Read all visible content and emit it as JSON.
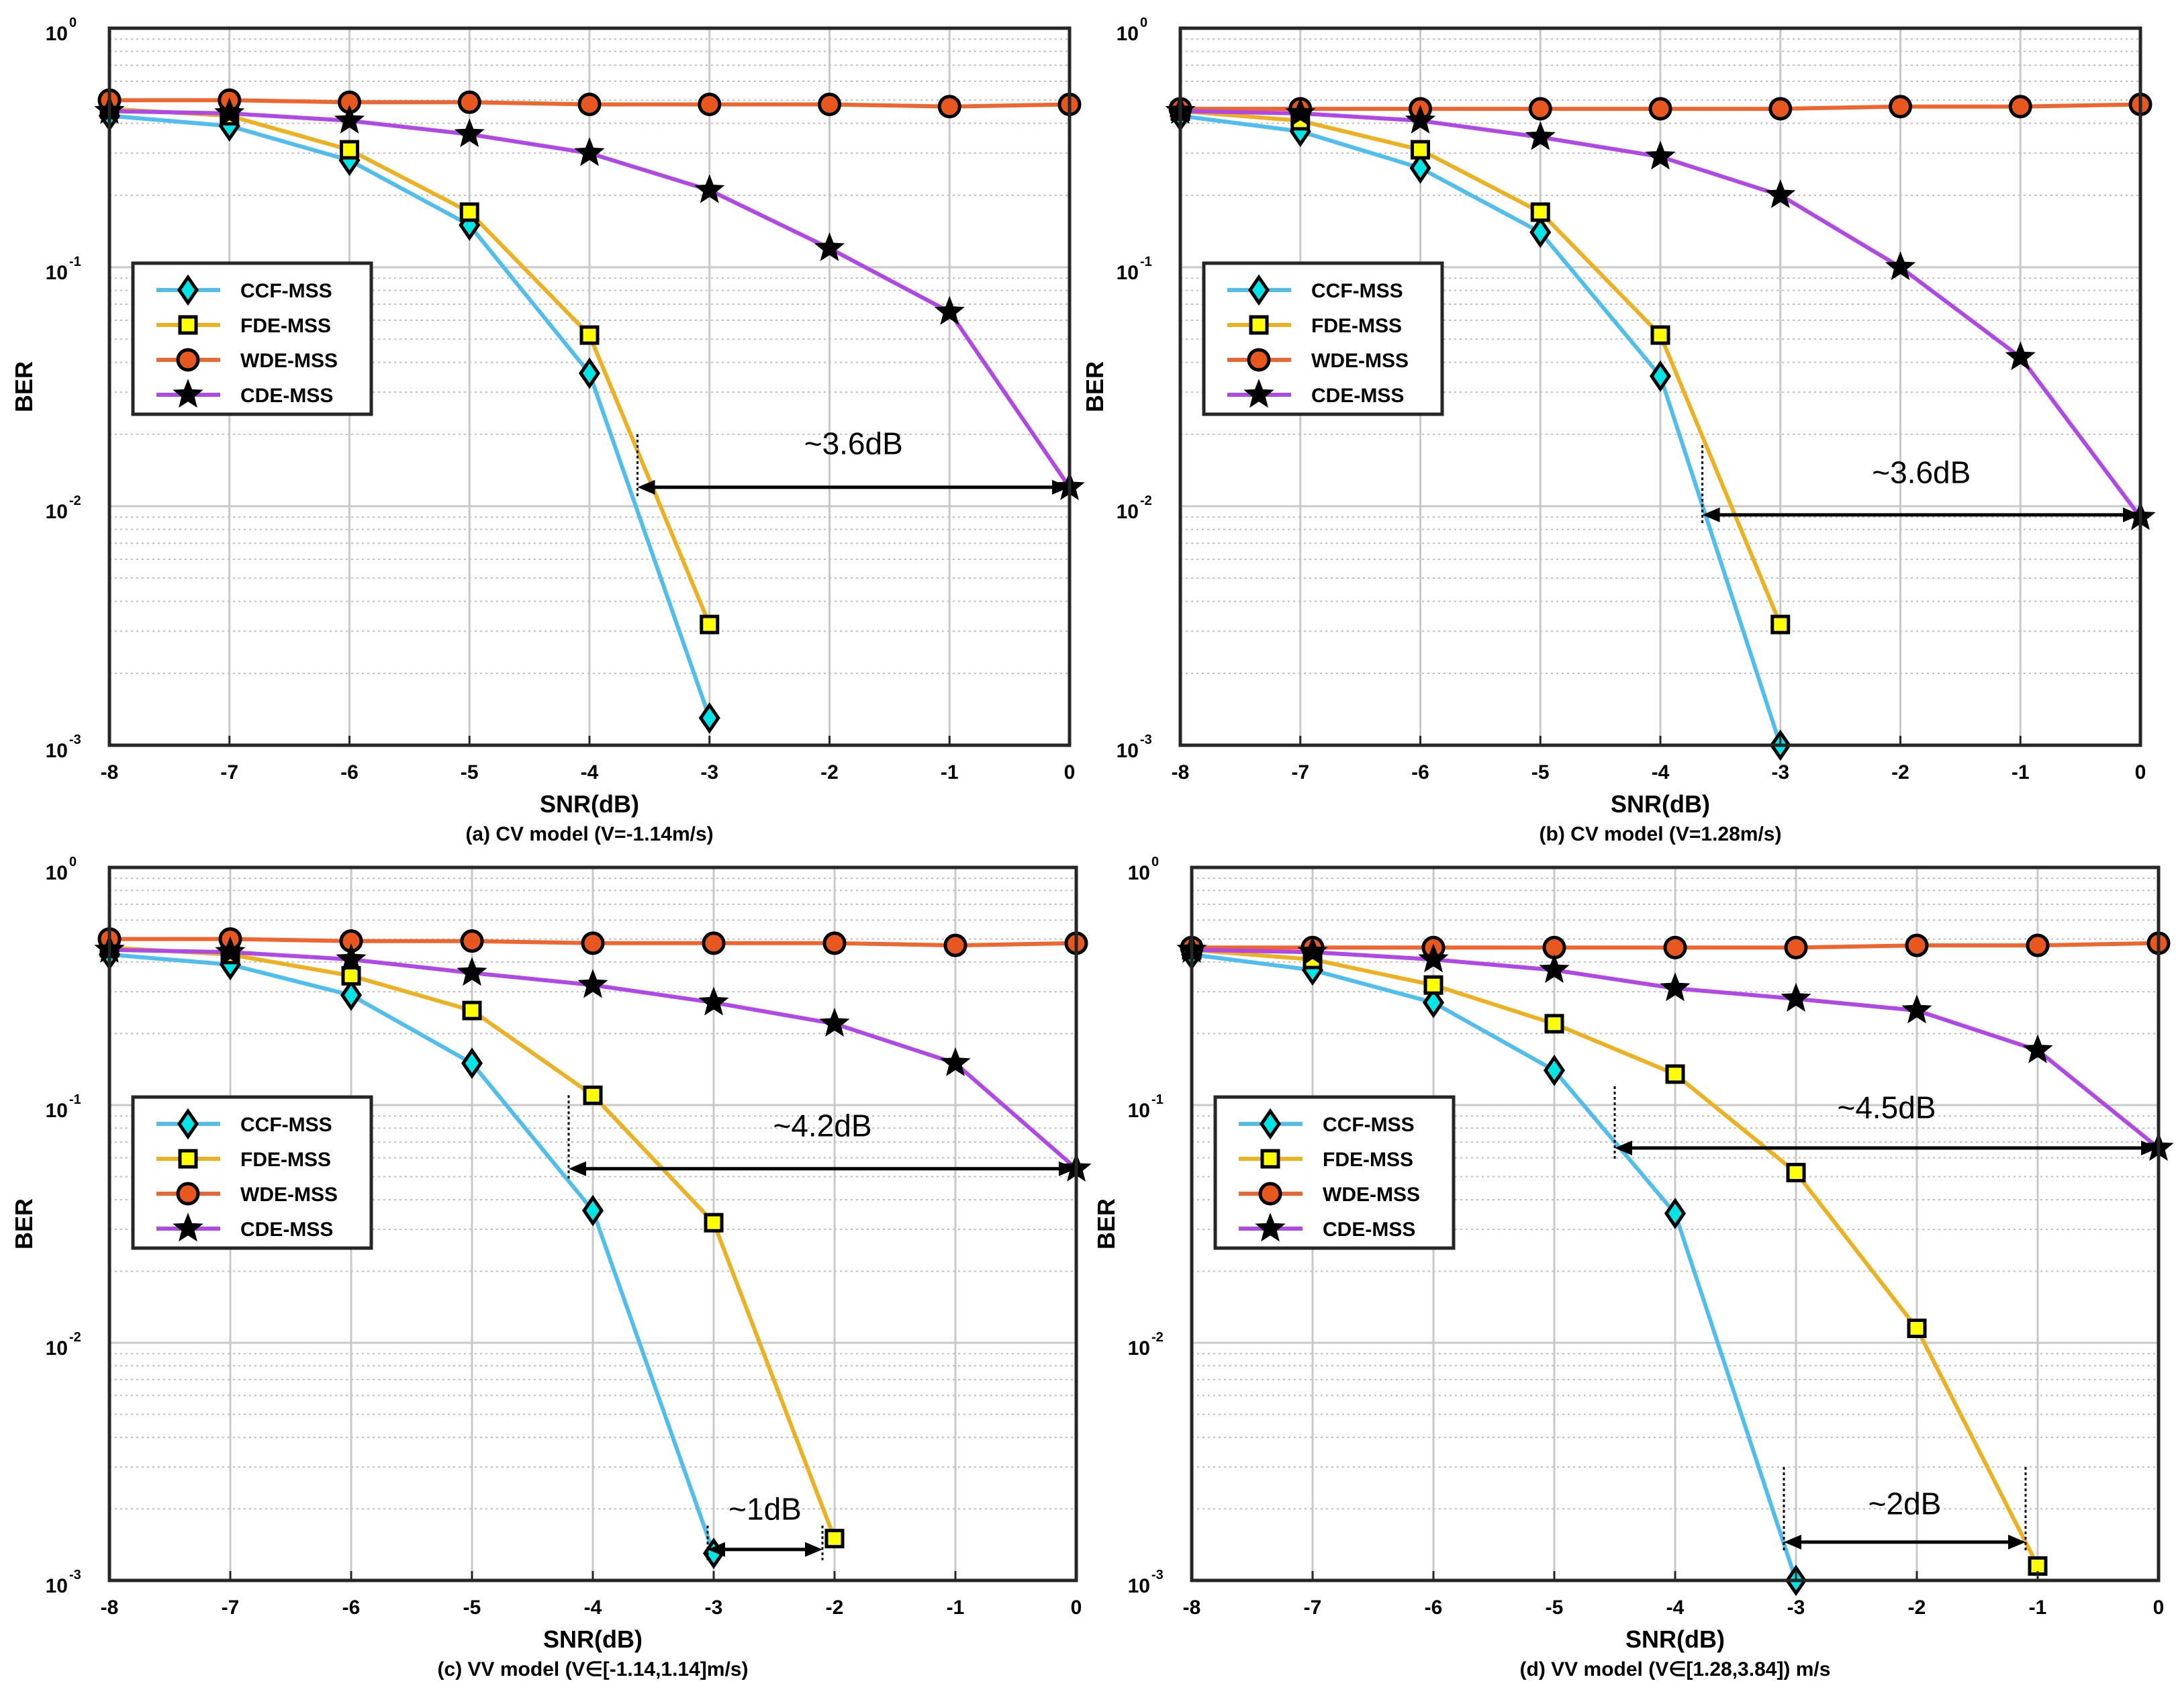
{
  "figure": {
    "colors": {
      "ccf": "#4DBEEE",
      "fde": "#EDB120",
      "wde": "#F0642D",
      "cde": "#B048E8",
      "cyan_marker": "#00E5E5",
      "yellow_marker": "#FFFF00",
      "orange_marker": "#E8581E",
      "black": "#000000",
      "grid": "#c8c8c8"
    }
  },
  "chart_data": [
    {
      "type": "line",
      "yscale": "log",
      "caption": "(a) CV model (V=-1.14m/s)",
      "xlabel": "SNR(dB)",
      "ylabel": "BER",
      "xlim": [
        -8,
        0
      ],
      "ylim": [
        0.001,
        1
      ],
      "grid": true,
      "legend_position": "center-left",
      "x_ticks": [
        "-8",
        "-7",
        "-6",
        "-5",
        "-4",
        "-3",
        "-2",
        "-1",
        "0"
      ],
      "y_tick_base": "10",
      "y_tick_exponents": [
        "-3",
        "-2",
        "-1",
        "0"
      ],
      "series": [
        {
          "name": "CCF-MSS",
          "key": "ccf",
          "marker": "diamond",
          "x": [
            -8,
            -7,
            -6,
            -5,
            -4,
            -3
          ],
          "values": [
            0.43,
            0.39,
            0.28,
            0.15,
            0.036,
            0.0013
          ]
        },
        {
          "name": "FDE-MSS",
          "key": "fde",
          "marker": "square",
          "x": [
            -8,
            -7,
            -6,
            -5,
            -4,
            -3
          ],
          "values": [
            0.46,
            0.43,
            0.31,
            0.17,
            0.052,
            0.0032
          ]
        },
        {
          "name": "WDE-MSS",
          "key": "wde",
          "marker": "circle",
          "x": [
            -8,
            -7,
            -6,
            -5,
            -4,
            -3,
            -2,
            -1,
            0
          ],
          "values": [
            0.5,
            0.5,
            0.49,
            0.49,
            0.48,
            0.48,
            0.48,
            0.47,
            0.48
          ]
        },
        {
          "name": "CDE-MSS",
          "key": "cde",
          "marker": "star",
          "x": [
            -8,
            -7,
            -6,
            -5,
            -4,
            -3,
            -2,
            -1,
            0
          ],
          "values": [
            0.45,
            0.44,
            0.41,
            0.36,
            0.3,
            0.21,
            0.12,
            0.065,
            0.012
          ]
        }
      ],
      "annotations": [
        {
          "text": "~3.6dB",
          "x1": -3.6,
          "x2": 0,
          "y": 0.012,
          "text_y": 0.0165,
          "v1_top": 0.02,
          "v2_top": 0.019
        }
      ]
    },
    {
      "type": "line",
      "yscale": "log",
      "caption": "(b) CV model (V=1.28m/s)",
      "xlabel": "SNR(dB)",
      "ylabel": "BER",
      "xlim": [
        -8,
        0
      ],
      "ylim": [
        0.001,
        1
      ],
      "grid": true,
      "legend_position": "center-left",
      "x_ticks": [
        "-8",
        "-7",
        "-6",
        "-5",
        "-4",
        "-3",
        "-2",
        "-1",
        "0"
      ],
      "y_tick_base": "10",
      "y_tick_exponents": [
        "-3",
        "-2",
        "-1",
        "0"
      ],
      "series": [
        {
          "name": "CCF-MSS",
          "key": "ccf",
          "marker": "diamond",
          "x": [
            -8,
            -7,
            -6,
            -5,
            -4,
            -3
          ],
          "values": [
            0.43,
            0.37,
            0.26,
            0.14,
            0.035,
            0.001
          ]
        },
        {
          "name": "FDE-MSS",
          "key": "fde",
          "marker": "square",
          "x": [
            -8,
            -7,
            -6,
            -5,
            -4,
            -3
          ],
          "values": [
            0.45,
            0.41,
            0.31,
            0.17,
            0.052,
            0.0032
          ]
        },
        {
          "name": "WDE-MSS",
          "key": "wde",
          "marker": "circle",
          "x": [
            -8,
            -7,
            -6,
            -5,
            -4,
            -3,
            -2,
            -1,
            0
          ],
          "values": [
            0.46,
            0.46,
            0.46,
            0.46,
            0.46,
            0.46,
            0.47,
            0.47,
            0.48
          ]
        },
        {
          "name": "CDE-MSS",
          "key": "cde",
          "marker": "star",
          "x": [
            -8,
            -7,
            -6,
            -5,
            -4,
            -3,
            -2,
            -1,
            0
          ],
          "values": [
            0.45,
            0.44,
            0.41,
            0.35,
            0.29,
            0.2,
            0.1,
            0.042,
            0.009
          ]
        }
      ],
      "annotations": [
        {
          "text": "~3.6dB",
          "x1": -3.65,
          "x2": 0,
          "y": 0.0092,
          "text_y": 0.0125,
          "v1_top": 0.018,
          "v2_top": 0.018
        }
      ]
    },
    {
      "type": "line",
      "yscale": "log",
      "caption": "(c) VV model (V∈[-1.14,1.14]m/s)",
      "xlabel": "SNR(dB)",
      "ylabel": "BER",
      "xlim": [
        -8,
        0
      ],
      "ylim": [
        0.001,
        1
      ],
      "grid": true,
      "legend_position": "center-left",
      "x_ticks": [
        "-8",
        "-7",
        "-6",
        "-5",
        "-4",
        "-3",
        "-2",
        "-1",
        "0"
      ],
      "y_tick_base": "10",
      "y_tick_exponents": [
        "-3",
        "-2",
        "-1",
        "0"
      ],
      "series": [
        {
          "name": "CCF-MSS",
          "key": "ccf",
          "marker": "diamond",
          "x": [
            -8,
            -7,
            -6,
            -5,
            -4,
            -3
          ],
          "values": [
            0.43,
            0.39,
            0.29,
            0.15,
            0.036,
            0.0013
          ]
        },
        {
          "name": "FDE-MSS",
          "key": "fde",
          "marker": "square",
          "x": [
            -8,
            -7,
            -6,
            -5,
            -4,
            -3,
            -2
          ],
          "values": [
            0.46,
            0.43,
            0.35,
            0.25,
            0.11,
            0.032,
            0.0015
          ]
        },
        {
          "name": "WDE-MSS",
          "key": "wde",
          "marker": "circle",
          "x": [
            -8,
            -7,
            -6,
            -5,
            -4,
            -3,
            -2,
            -1,
            0
          ],
          "values": [
            0.5,
            0.5,
            0.49,
            0.49,
            0.48,
            0.48,
            0.48,
            0.47,
            0.48
          ]
        },
        {
          "name": "CDE-MSS",
          "key": "cde",
          "marker": "star",
          "x": [
            -8,
            -7,
            -6,
            -5,
            -4,
            -3,
            -2,
            -1,
            0
          ],
          "values": [
            0.45,
            0.44,
            0.41,
            0.36,
            0.32,
            0.27,
            0.22,
            0.15,
            0.054
          ]
        }
      ],
      "annotations": [
        {
          "text": "~4.2dB",
          "x1": -4.2,
          "x2": 0,
          "y": 0.054,
          "text_y": 0.074,
          "v1_top": 0.11,
          "v2_top": 0.11
        },
        {
          "text": "~1dB",
          "x1": -3.05,
          "x2": -2.1,
          "y": 0.00135,
          "text_y": 0.0018,
          "v1_top": 0.0017,
          "v2_top": 0.0017
        }
      ]
    },
    {
      "type": "line",
      "yscale": "log",
      "caption": "(d) VV model (V∈[1.28,3.84]) m/s",
      "xlabel": "SNR(dB)",
      "ylabel": "BER",
      "xlim": [
        -8,
        0
      ],
      "ylim": [
        0.001,
        1
      ],
      "grid": true,
      "legend_position": "center-left",
      "x_ticks": [
        "-8",
        "-7",
        "-6",
        "-5",
        "-4",
        "-3",
        "-2",
        "-1",
        "0"
      ],
      "y_tick_base": "10",
      "y_tick_exponents": [
        "-3",
        "-2",
        "-1",
        "0"
      ],
      "series": [
        {
          "name": "CCF-MSS",
          "key": "ccf",
          "marker": "diamond",
          "x": [
            -8,
            -7,
            -6,
            -5,
            -4,
            -3
          ],
          "values": [
            0.43,
            0.37,
            0.27,
            0.14,
            0.035,
            0.001
          ]
        },
        {
          "name": "FDE-MSS",
          "key": "fde",
          "marker": "square",
          "x": [
            -8,
            -7,
            -6,
            -5,
            -4,
            -3,
            -2,
            -1
          ],
          "values": [
            0.45,
            0.41,
            0.32,
            0.22,
            0.135,
            0.052,
            0.0115,
            0.00115
          ]
        },
        {
          "name": "WDE-MSS",
          "key": "wde",
          "marker": "circle",
          "x": [
            -8,
            -7,
            -6,
            -5,
            -4,
            -3,
            -2,
            -1,
            0
          ],
          "values": [
            0.46,
            0.46,
            0.46,
            0.46,
            0.46,
            0.46,
            0.47,
            0.47,
            0.48
          ]
        },
        {
          "name": "CDE-MSS",
          "key": "cde",
          "marker": "star",
          "x": [
            -8,
            -7,
            -6,
            -5,
            -4,
            -3,
            -2,
            -1,
            0
          ],
          "values": [
            0.45,
            0.44,
            0.41,
            0.37,
            0.31,
            0.28,
            0.25,
            0.17,
            0.066
          ]
        }
      ],
      "annotations": [
        {
          "text": "~4.5dB",
          "x1": -4.5,
          "x2": 0,
          "y": 0.066,
          "text_y": 0.088,
          "v1_top": 0.12,
          "v2_top": 0.12
        },
        {
          "text": "~2dB",
          "x1": -3.1,
          "x2": -1.1,
          "y": 0.00145,
          "text_y": 0.0019,
          "v1_top": 0.003,
          "v2_top": 0.003
        }
      ]
    }
  ]
}
